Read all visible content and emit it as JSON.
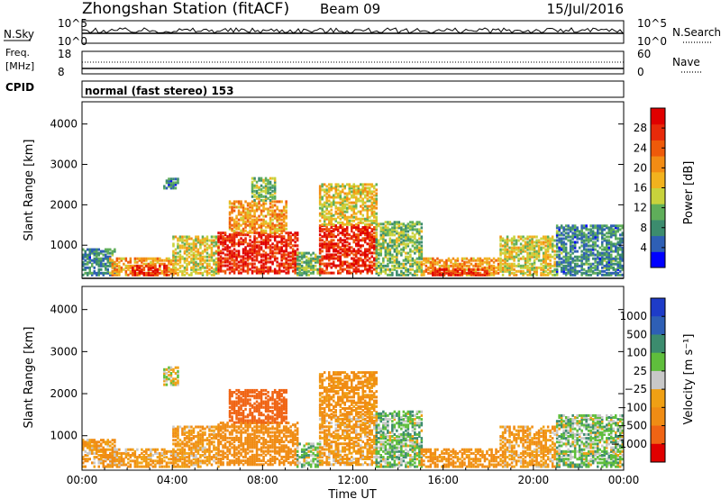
{
  "header": {
    "station": "Zhongshan Station (fitACF)",
    "beam": "Beam 09",
    "date": "15/Jul/2016"
  },
  "panels": {
    "sky": {
      "left_label": "N.Sky",
      "right_label": "N.Search",
      "ticks_left": [
        "10^5",
        "10^0"
      ],
      "ticks_right": [
        "10^5",
        "10^0"
      ]
    },
    "freq": {
      "left_label_1": "Freq.",
      "left_label_2": "[MHz]",
      "ticks_left": [
        "18",
        "8"
      ],
      "ticks_right": [
        "60",
        "0"
      ],
      "right_label": "Nave"
    },
    "cpid": {
      "label": "CPID",
      "text": "normal (fast stereo) 153"
    }
  },
  "colors": {
    "power": [
      "#0000ff",
      "#2e5fb5",
      "#3c8c6e",
      "#5fae5a",
      "#c8d23c",
      "#f2b21e",
      "#f28c14",
      "#ee5a0a",
      "#e82a0a",
      "#e00000"
    ],
    "velocity": [
      "#1e3cc8",
      "#2e5fb5",
      "#3c8c6e",
      "#5fbe3c",
      "#c8c8c8",
      "#f0a014",
      "#f08c14",
      "#f06414",
      "#e00000"
    ]
  },
  "chart_data": [
    {
      "type": "heatmap",
      "name": "power",
      "ylabel": "Slant Range [km]",
      "yticks": [
        "4000",
        "3000",
        "2000",
        "1000"
      ],
      "ylim": [
        180,
        4550
      ],
      "xlim": [
        0,
        24
      ],
      "colorbar_label": "Power [dB]",
      "colorbar_ticks": [
        "28",
        "24",
        "20",
        "16",
        "12",
        "8",
        "4"
      ],
      "colorbar_range": [
        0,
        32
      ],
      "echo_regions": [
        {
          "t0": 0.0,
          "t1": 1.5,
          "r0": 250,
          "r1": 900,
          "level": 8
        },
        {
          "t0": 1.2,
          "t1": 4.2,
          "r0": 250,
          "r1": 700,
          "level": 20
        },
        {
          "t0": 2.2,
          "t1": 3.8,
          "r0": 250,
          "r1": 480,
          "level": 28
        },
        {
          "t0": 3.6,
          "t1": 4.2,
          "r0": 2400,
          "r1": 2650,
          "level": 8
        },
        {
          "t0": 4.0,
          "t1": 6.0,
          "r0": 250,
          "r1": 1200,
          "level": 16
        },
        {
          "t0": 6.0,
          "t1": 9.5,
          "r0": 300,
          "r1": 1300,
          "level": 28
        },
        {
          "t0": 6.5,
          "t1": 9.0,
          "r0": 1300,
          "r1": 2100,
          "level": 20
        },
        {
          "t0": 7.5,
          "t1": 8.5,
          "r0": 2100,
          "r1": 2650,
          "level": 12
        },
        {
          "t0": 9.5,
          "t1": 10.5,
          "r0": 250,
          "r1": 800,
          "level": 12
        },
        {
          "t0": 10.5,
          "t1": 13.0,
          "r0": 300,
          "r1": 1500,
          "level": 28
        },
        {
          "t0": 10.5,
          "t1": 13.0,
          "r0": 1500,
          "r1": 2500,
          "level": 16
        },
        {
          "t0": 13.0,
          "t1": 15.0,
          "r0": 250,
          "r1": 1600,
          "level": 12
        },
        {
          "t0": 15.0,
          "t1": 18.5,
          "r0": 250,
          "r1": 700,
          "level": 20
        },
        {
          "t0": 15.5,
          "t1": 18.0,
          "r0": 250,
          "r1": 420,
          "level": 28
        },
        {
          "t0": 18.5,
          "t1": 21.0,
          "r0": 250,
          "r1": 1200,
          "level": 16
        },
        {
          "t0": 21.0,
          "t1": 24.0,
          "r0": 250,
          "r1": 1500,
          "level": 8
        }
      ]
    },
    {
      "type": "heatmap",
      "name": "velocity",
      "ylabel": "Slant Range [km]",
      "yticks": [
        "4000",
        "3000",
        "2000",
        "1000"
      ],
      "ylim": [
        180,
        4550
      ],
      "xlim": [
        0,
        24
      ],
      "xlabel": "Time UT",
      "xticks": [
        "00:00",
        "04:00",
        "08:00",
        "12:00",
        "16:00",
        "20:00",
        "00:00"
      ],
      "colorbar_label": "Velocity [m s⁻¹]",
      "colorbar_ticks": [
        "1000",
        "500",
        "100",
        "25",
        "−25",
        "−100",
        "−500",
        "−1000"
      ],
      "echo_regions": [
        {
          "t0": 0.0,
          "t1": 1.5,
          "r0": 250,
          "r1": 900,
          "level": -100
        },
        {
          "t0": 1.2,
          "t1": 4.2,
          "r0": 250,
          "r1": 700,
          "level": -100
        },
        {
          "t0": 3.6,
          "t1": 4.2,
          "r0": 2200,
          "r1": 2650,
          "level": 0
        },
        {
          "t0": 4.0,
          "t1": 6.0,
          "r0": 250,
          "r1": 1200,
          "level": -100
        },
        {
          "t0": 6.0,
          "t1": 9.5,
          "r0": 300,
          "r1": 1300,
          "level": -200
        },
        {
          "t0": 6.5,
          "t1": 9.0,
          "r0": 1300,
          "r1": 2100,
          "level": -600
        },
        {
          "t0": 9.5,
          "t1": 10.5,
          "r0": 250,
          "r1": 800,
          "level": 50
        },
        {
          "t0": 10.5,
          "t1": 13.0,
          "r0": 300,
          "r1": 1500,
          "level": -100
        },
        {
          "t0": 10.5,
          "t1": 13.0,
          "r0": 1500,
          "r1": 2500,
          "level": -150
        },
        {
          "t0": 13.0,
          "t1": 15.0,
          "r0": 250,
          "r1": 1600,
          "level": 60
        },
        {
          "t0": 15.0,
          "t1": 18.5,
          "r0": 250,
          "r1": 700,
          "level": -150
        },
        {
          "t0": 18.5,
          "t1": 21.0,
          "r0": 250,
          "r1": 1200,
          "level": -100
        },
        {
          "t0": 21.0,
          "t1": 24.0,
          "r0": 250,
          "r1": 1500,
          "level": 50
        }
      ]
    }
  ]
}
